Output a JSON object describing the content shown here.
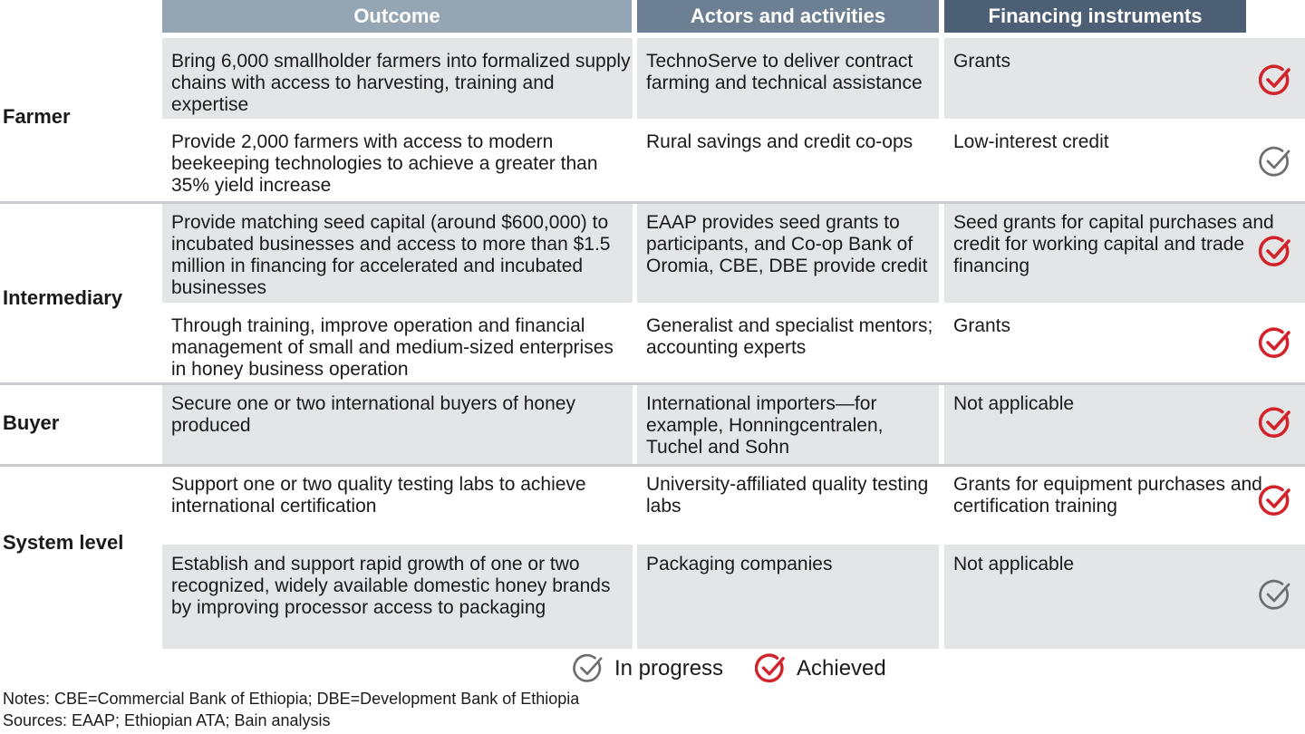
{
  "headers": {
    "outcome": "Outcome",
    "actors": "Actors and activities",
    "financing": "Financing instruments"
  },
  "groups": [
    {
      "label": "Farmer"
    },
    {
      "label": "Intermediary"
    },
    {
      "label": "Buyer"
    },
    {
      "label": "System level"
    }
  ],
  "rows": [
    {
      "outcome": "Bring 6,000 smallholder farmers into formalized supply chains with access to harvesting, training and expertise",
      "actors": "TechnoServe to deliver contract farming and technical assistance",
      "financing": "Grants",
      "status": "Achieved"
    },
    {
      "outcome": "Provide 2,000 farmers with access to modern beekeeping technologies to achieve a greater than 35% yield increase",
      "actors": "Rural savings and credit co-ops",
      "financing": "Low-interest credit",
      "status": "In progress"
    },
    {
      "outcome": "Provide matching seed capital (around $600,000) to incubated businesses and access to more than $1.5 million in financing for accelerated and incubated businesses",
      "actors": "EAAP provides seed grants to participants, and Co-op Bank of Oromia, CBE, DBE provide credit",
      "financing": "Seed grants for capital purchases and credit for working capital and trade financing",
      "status": "Achieved"
    },
    {
      "outcome": "Through training, improve operation and financial management of small and medium-sized enterprises in honey business operation",
      "actors": "Generalist and specialist mentors; accounting experts",
      "financing": "Grants",
      "status": "Achieved"
    },
    {
      "outcome": "Secure one or two international buyers of honey produced",
      "actors": "International importers—for example, Honningcentralen, Tuchel and Sohn",
      "financing": "Not applicable",
      "status": "Achieved"
    },
    {
      "outcome": "Support one or two quality testing labs to achieve international certification",
      "actors": "University-affiliated quality testing labs",
      "financing": "Grants for equipment purchases and certification training",
      "status": "Achieved"
    },
    {
      "outcome": "Establish and support rapid growth of one or two recognized, widely available domestic honey brands by improving processor access to packaging",
      "actors": "Packaging companies",
      "financing": "Not applicable",
      "status": "In progress"
    }
  ],
  "legend": {
    "in_progress": "In progress",
    "achieved": "Achieved"
  },
  "notes": "Notes: CBE=Commercial Bank of Ethiopia; DBE=Development Bank of Ethiopia",
  "sources": "Sources: EAAP; Ethiopian ATA; Bain analysis",
  "colors": {
    "achieved": "#d2232a",
    "in_progress": "#6d6e70",
    "header_outcome": "#94a5b3",
    "header_actors": "#6d7f92",
    "header_financing": "#4c5f75",
    "row_gray": "#e4e5e7"
  }
}
